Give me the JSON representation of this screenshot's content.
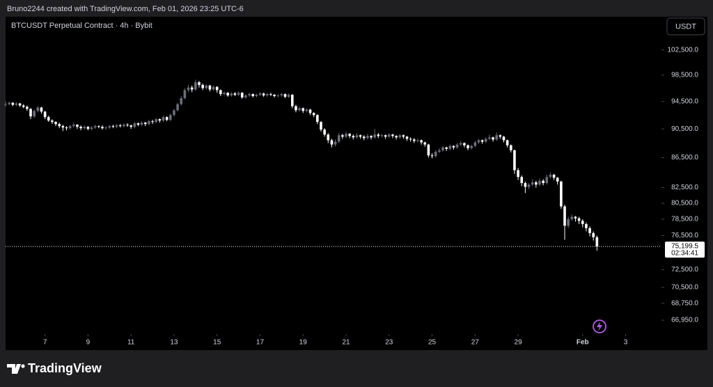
{
  "header": "Bruno2244 created with TradingView.com, Feb 01, 2026 23:25 UTC-6",
  "footer_logo": "TradingView",
  "chart_data": {
    "type": "candlestick",
    "title": "BTCUSDT Perpetual Contract · 4h · Bybit",
    "currency_button": "USDT",
    "up_color": "#6a6d78",
    "down_color": "#ffffff",
    "log_scale": true,
    "grid": false,
    "ylim": [
      65500,
      108000
    ],
    "yticks": [
      {
        "value": 102500,
        "label": "102,500.0"
      },
      {
        "value": 98500,
        "label": "98,500.0"
      },
      {
        "value": 94500,
        "label": "94,500.0"
      },
      {
        "value": 90500,
        "label": "90,500.0"
      },
      {
        "value": 86500,
        "label": "86,500.0"
      },
      {
        "value": 82500,
        "label": "82,500.0"
      },
      {
        "value": 80500,
        "label": "80,500.0"
      },
      {
        "value": 78500,
        "label": "78,500.0"
      },
      {
        "value": 76500,
        "label": "76,500.0"
      },
      {
        "value": 72500,
        "label": "72,500.0"
      },
      {
        "value": 70500,
        "label": "70,500.0"
      },
      {
        "value": 68750,
        "label": "68,750.0"
      },
      {
        "value": 66950,
        "label": "66,950.0"
      }
    ],
    "xlim": [
      0,
      183
    ],
    "xticks": [
      {
        "value": 11,
        "label": "7"
      },
      {
        "value": 23,
        "label": "9"
      },
      {
        "value": 35,
        "label": "11"
      },
      {
        "value": 47,
        "label": "13"
      },
      {
        "value": 59,
        "label": "15"
      },
      {
        "value": 71,
        "label": "17"
      },
      {
        "value": 83,
        "label": "19"
      },
      {
        "value": 95,
        "label": "21"
      },
      {
        "value": 107,
        "label": "23"
      },
      {
        "value": 119,
        "label": "25"
      },
      {
        "value": 131,
        "label": "27"
      },
      {
        "value": 143,
        "label": "29"
      },
      {
        "value": 161,
        "label": "Feb"
      },
      {
        "value": 173,
        "label": "3"
      }
    ],
    "last_price": {
      "value": 75199.5,
      "label": "75,199.5"
    },
    "countdown": "02:34:41",
    "candles": [
      [
        94000,
        94500,
        93700,
        94100
      ],
      [
        94100,
        94500,
        93900,
        94300
      ],
      [
        94300,
        94400,
        93800,
        94000
      ],
      [
        94000,
        94400,
        93800,
        94200
      ],
      [
        94200,
        94300,
        93700,
        93900
      ],
      [
        93900,
        94100,
        93500,
        93700
      ],
      [
        93700,
        93900,
        93100,
        93400
      ],
      [
        93400,
        93500,
        91900,
        92300
      ],
      [
        92300,
        93300,
        92100,
        93100
      ],
      [
        93100,
        93800,
        92900,
        93600
      ],
      [
        93600,
        93700,
        92700,
        93000
      ],
      [
        93000,
        93100,
        91900,
        92200
      ],
      [
        92200,
        92400,
        91500,
        91700
      ],
      [
        91700,
        91900,
        91200,
        91500
      ],
      [
        91500,
        91600,
        90900,
        91200
      ],
      [
        91200,
        91400,
        90600,
        90900
      ],
      [
        90900,
        91100,
        90200,
        90700
      ],
      [
        90700,
        90900,
        90300,
        90600
      ],
      [
        90600,
        91100,
        90400,
        90900
      ],
      [
        90900,
        91400,
        90700,
        91100
      ],
      [
        91100,
        91200,
        90500,
        90800
      ],
      [
        90800,
        91000,
        90300,
        90600
      ],
      [
        90600,
        91000,
        90400,
        90800
      ],
      [
        90800,
        90900,
        90300,
        90500
      ],
      [
        90500,
        90900,
        90300,
        90700
      ],
      [
        90700,
        91100,
        90500,
        90900
      ],
      [
        90900,
        91000,
        90600,
        90800
      ],
      [
        90800,
        91000,
        90400,
        90600
      ],
      [
        90600,
        90900,
        90400,
        90700
      ],
      [
        90700,
        91100,
        90500,
        90900
      ],
      [
        90900,
        91100,
        90600,
        90800
      ],
      [
        90800,
        91200,
        90600,
        91000
      ],
      [
        91000,
        91200,
        90700,
        90900
      ],
      [
        90900,
        91300,
        90700,
        91100
      ],
      [
        91100,
        91300,
        90800,
        91000
      ],
      [
        91000,
        91100,
        90500,
        90800
      ],
      [
        90800,
        91500,
        90600,
        91300
      ],
      [
        91300,
        91400,
        90900,
        91100
      ],
      [
        91100,
        91600,
        90900,
        91400
      ],
      [
        91400,
        91500,
        90900,
        91200
      ],
      [
        91200,
        91800,
        91000,
        91600
      ],
      [
        91600,
        91800,
        91200,
        91500
      ],
      [
        91500,
        92100,
        91300,
        91900
      ],
      [
        91900,
        92000,
        91400,
        91700
      ],
      [
        91700,
        92400,
        91500,
        92200
      ],
      [
        92200,
        92300,
        91600,
        91800
      ],
      [
        91800,
        92700,
        91600,
        92500
      ],
      [
        92500,
        93400,
        92300,
        93200
      ],
      [
        93200,
        94300,
        93000,
        94100
      ],
      [
        94100,
        95300,
        93900,
        95000
      ],
      [
        95000,
        96500,
        94800,
        96200
      ],
      [
        96200,
        97000,
        95900,
        96600
      ],
      [
        96600,
        96900,
        95900,
        96300
      ],
      [
        96300,
        97800,
        96100,
        97400
      ],
      [
        97400,
        97600,
        96600,
        97000
      ],
      [
        97000,
        97200,
        96200,
        96500
      ],
      [
        96500,
        97100,
        96300,
        96900
      ],
      [
        96900,
        97000,
        96000,
        96300
      ],
      [
        96300,
        96900,
        96100,
        96700
      ],
      [
        96700,
        96800,
        95800,
        96200
      ],
      [
        96200,
        96300,
        95300,
        95600
      ],
      [
        95600,
        96000,
        95400,
        95800
      ],
      [
        95800,
        95900,
        95200,
        95400
      ],
      [
        95400,
        95900,
        95200,
        95700
      ],
      [
        95700,
        95900,
        95300,
        95500
      ],
      [
        95500,
        96000,
        95300,
        95800
      ],
      [
        95800,
        95900,
        94900,
        95100
      ],
      [
        95100,
        95600,
        94900,
        95400
      ],
      [
        95400,
        95800,
        95200,
        95600
      ],
      [
        95600,
        95700,
        95100,
        95300
      ],
      [
        95300,
        95700,
        95100,
        95500
      ],
      [
        95500,
        95900,
        95300,
        95700
      ],
      [
        95700,
        95800,
        95200,
        95400
      ],
      [
        95400,
        95800,
        95200,
        95600
      ],
      [
        95600,
        95800,
        95300,
        95500
      ],
      [
        95500,
        95600,
        95100,
        95300
      ],
      [
        95300,
        95600,
        95100,
        95400
      ],
      [
        95400,
        95800,
        95200,
        95600
      ],
      [
        95600,
        95700,
        95000,
        95200
      ],
      [
        95200,
        95700,
        95000,
        95500
      ],
      [
        95500,
        95600,
        93500,
        93800
      ],
      [
        93800,
        94000,
        92900,
        93200
      ],
      [
        93200,
        93700,
        93000,
        93500
      ],
      [
        93500,
        93600,
        92800,
        93100
      ],
      [
        93100,
        93500,
        92900,
        93300
      ],
      [
        93300,
        93400,
        92500,
        92800
      ],
      [
        92800,
        92900,
        92200,
        92500
      ],
      [
        92500,
        92600,
        91200,
        91500
      ],
      [
        91500,
        91600,
        90100,
        90400
      ],
      [
        90400,
        90600,
        89400,
        89700
      ],
      [
        89700,
        89900,
        88500,
        88900
      ],
      [
        88900,
        89100,
        87900,
        88300
      ],
      [
        88300,
        89000,
        88000,
        88700
      ],
      [
        88700,
        89900,
        88500,
        89600
      ],
      [
        89600,
        89800,
        89100,
        89400
      ],
      [
        89400,
        90100,
        89200,
        89800
      ],
      [
        89800,
        89900,
        89200,
        89500
      ],
      [
        89500,
        89700,
        89000,
        89300
      ],
      [
        89300,
        89900,
        89100,
        89600
      ],
      [
        89600,
        89700,
        89100,
        89400
      ],
      [
        89400,
        89600,
        88900,
        89200
      ],
      [
        89200,
        89800,
        89000,
        89500
      ],
      [
        89500,
        89600,
        89000,
        89300
      ],
      [
        89300,
        90500,
        89100,
        89700
      ],
      [
        89700,
        89900,
        89200,
        89500
      ],
      [
        89500,
        89800,
        89300,
        89600
      ],
      [
        89600,
        89700,
        89100,
        89400
      ],
      [
        89400,
        89900,
        89200,
        89700
      ],
      [
        89700,
        89800,
        89200,
        89500
      ],
      [
        89500,
        89600,
        89000,
        89300
      ],
      [
        89300,
        89800,
        89100,
        89600
      ],
      [
        89600,
        89700,
        89100,
        89400
      ],
      [
        89400,
        89500,
        88800,
        89100
      ],
      [
        89100,
        89300,
        88700,
        89000
      ],
      [
        89000,
        89200,
        88500,
        88800
      ],
      [
        88800,
        89100,
        88600,
        88900
      ],
      [
        88900,
        89000,
        88300,
        88600
      ],
      [
        88600,
        88700,
        88000,
        88300
      ],
      [
        88300,
        88400,
        86500,
        86800
      ],
      [
        86800,
        87100,
        86400,
        86700
      ],
      [
        86700,
        87500,
        86500,
        87300
      ],
      [
        87300,
        87800,
        87100,
        87500
      ],
      [
        87500,
        88100,
        87300,
        87900
      ],
      [
        87900,
        88000,
        87400,
        87700
      ],
      [
        87700,
        88300,
        87500,
        88100
      ],
      [
        88100,
        88200,
        87600,
        87900
      ],
      [
        87900,
        88500,
        87700,
        88300
      ],
      [
        88300,
        88800,
        88100,
        88500
      ],
      [
        88500,
        88600,
        87900,
        88200
      ],
      [
        88200,
        88300,
        87500,
        87800
      ],
      [
        87800,
        88300,
        87600,
        88100
      ],
      [
        88100,
        88800,
        87900,
        88600
      ],
      [
        88600,
        89100,
        88400,
        88900
      ],
      [
        88900,
        89000,
        88400,
        88700
      ],
      [
        88700,
        89300,
        88500,
        89100
      ],
      [
        89100,
        89700,
        88900,
        89300
      ],
      [
        89300,
        89400,
        88700,
        89000
      ],
      [
        89000,
        90000,
        88800,
        89600
      ],
      [
        89600,
        89700,
        89100,
        89400
      ],
      [
        89400,
        89500,
        88600,
        88900
      ],
      [
        88900,
        89000,
        87900,
        88200
      ],
      [
        88200,
        88300,
        87200,
        87500
      ],
      [
        87500,
        87600,
        84300,
        84800
      ],
      [
        84800,
        85100,
        83500,
        83900
      ],
      [
        83900,
        84100,
        82700,
        83100
      ],
      [
        83100,
        83300,
        81800,
        82600
      ],
      [
        82600,
        83100,
        82300,
        82900
      ],
      [
        82900,
        83600,
        82700,
        83200
      ],
      [
        83200,
        83400,
        82500,
        82900
      ],
      [
        82900,
        83700,
        82700,
        83400
      ],
      [
        83400,
        83600,
        82800,
        83100
      ],
      [
        83100,
        84200,
        82900,
        83900
      ],
      [
        83900,
        84500,
        83700,
        84200
      ],
      [
        84200,
        84300,
        83500,
        83800
      ],
      [
        83800,
        83900,
        82900,
        83300
      ],
      [
        83300,
        83400,
        79800,
        80100
      ],
      [
        80100,
        80300,
        76000,
        77700
      ],
      [
        77700,
        78800,
        77400,
        78500
      ],
      [
        78500,
        79100,
        78300,
        78800
      ],
      [
        78800,
        78900,
        78200,
        78600
      ],
      [
        78600,
        78800,
        77900,
        78300
      ],
      [
        78300,
        78500,
        77500,
        77900
      ],
      [
        77900,
        78100,
        77000,
        77400
      ],
      [
        77400,
        77600,
        76400,
        76800
      ],
      [
        76800,
        77000,
        75900,
        76300
      ],
      [
        76300,
        76500,
        74700,
        75199.5
      ]
    ]
  }
}
